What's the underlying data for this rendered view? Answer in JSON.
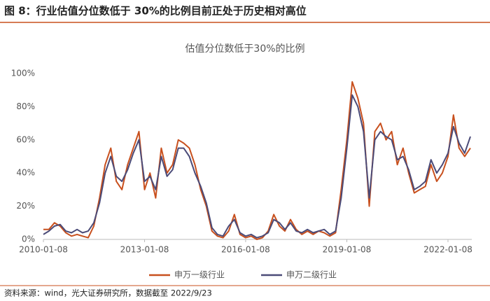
{
  "figure_caption": "图 8：行业估值分位数低于 30%的比例目前正处于历史相对高位",
  "source": "资料来源：wind，光大证券研究所，数据截至 2022/9/23",
  "chart_data": {
    "type": "line",
    "title": "估值分位数低于30%的比例",
    "x": [
      "2010-01-08",
      "2010-03-08",
      "2010-05-08",
      "2010-07-08",
      "2010-09-08",
      "2010-11-08",
      "2011-01-08",
      "2011-03-08",
      "2011-05-08",
      "2011-07-08",
      "2011-09-08",
      "2011-11-08",
      "2012-01-08",
      "2012-03-08",
      "2012-05-08",
      "2012-07-08",
      "2012-09-08",
      "2012-11-08",
      "2013-01-08",
      "2013-03-08",
      "2013-05-08",
      "2013-07-08",
      "2013-09-08",
      "2013-11-08",
      "2014-01-08",
      "2014-03-08",
      "2014-05-08",
      "2014-07-08",
      "2014-09-08",
      "2014-11-08",
      "2015-01-08",
      "2015-03-08",
      "2015-05-08",
      "2015-07-08",
      "2015-09-08",
      "2015-11-08",
      "2016-01-08",
      "2016-03-08",
      "2016-05-08",
      "2016-07-08",
      "2016-09-08",
      "2016-11-08",
      "2017-01-08",
      "2017-03-08",
      "2017-05-08",
      "2017-07-08",
      "2017-09-08",
      "2017-11-08",
      "2018-01-08",
      "2018-03-08",
      "2018-05-08",
      "2018-07-08",
      "2018-09-08",
      "2018-11-08",
      "2019-01-08",
      "2019-03-08",
      "2019-05-08",
      "2019-07-08",
      "2019-09-08",
      "2019-11-08",
      "2020-01-08",
      "2020-03-08",
      "2020-05-08",
      "2020-07-08",
      "2020-09-08",
      "2020-11-08",
      "2021-01-08",
      "2021-03-08",
      "2021-05-08",
      "2021-07-08",
      "2021-09-08",
      "2021-11-08",
      "2022-01-08",
      "2022-03-08",
      "2022-05-08",
      "2022-07-08",
      "2022-09-08"
    ],
    "series": [
      {
        "name": "申万一级行业",
        "color": "#c8501e",
        "values": [
          6,
          6,
          10,
          8,
          4,
          2,
          3,
          2,
          1,
          8,
          25,
          45,
          55,
          35,
          30,
          45,
          55,
          65,
          30,
          40,
          25,
          55,
          40,
          45,
          60,
          58,
          55,
          45,
          30,
          20,
          5,
          2,
          1,
          5,
          15,
          3,
          1,
          2,
          0,
          1,
          5,
          15,
          8,
          5,
          12,
          6,
          3,
          5,
          3,
          5,
          4,
          2,
          4,
          30,
          60,
          95,
          85,
          70,
          20,
          65,
          70,
          60,
          65,
          45,
          55,
          40,
          28,
          30,
          32,
          45,
          35,
          40,
          50,
          75,
          55,
          50,
          55
        ]
      },
      {
        "name": "申万二级行业",
        "color": "#4b4b78",
        "values": [
          3,
          5,
          8,
          9,
          5,
          4,
          6,
          4,
          5,
          10,
          22,
          40,
          50,
          38,
          35,
          42,
          52,
          60,
          35,
          38,
          30,
          50,
          38,
          42,
          55,
          55,
          50,
          40,
          32,
          22,
          7,
          3,
          2,
          8,
          12,
          4,
          2,
          3,
          1,
          2,
          4,
          12,
          10,
          6,
          10,
          5,
          4,
          6,
          4,
          5,
          6,
          3,
          5,
          25,
          55,
          87,
          80,
          65,
          25,
          60,
          65,
          62,
          60,
          48,
          50,
          42,
          30,
          32,
          35,
          48,
          40,
          45,
          52,
          68,
          58,
          52,
          62
        ]
      }
    ],
    "xlim": [
      "2010-01-08",
      "2022-09-23"
    ],
    "xticks": [
      "2010-01-08",
      "2013-01-08",
      "2016-01-08",
      "2019-01-08",
      "2022-01-08"
    ],
    "ylim": [
      0,
      100
    ],
    "yticks": [
      {
        "value": 0,
        "label": "0%"
      },
      {
        "value": 20,
        "label": "20%"
      },
      {
        "value": 40,
        "label": "40%"
      },
      {
        "value": 60,
        "label": "60%"
      },
      {
        "value": 80,
        "label": "80%"
      },
      {
        "value": 100,
        "label": "100%"
      }
    ],
    "legend": "bottom"
  }
}
